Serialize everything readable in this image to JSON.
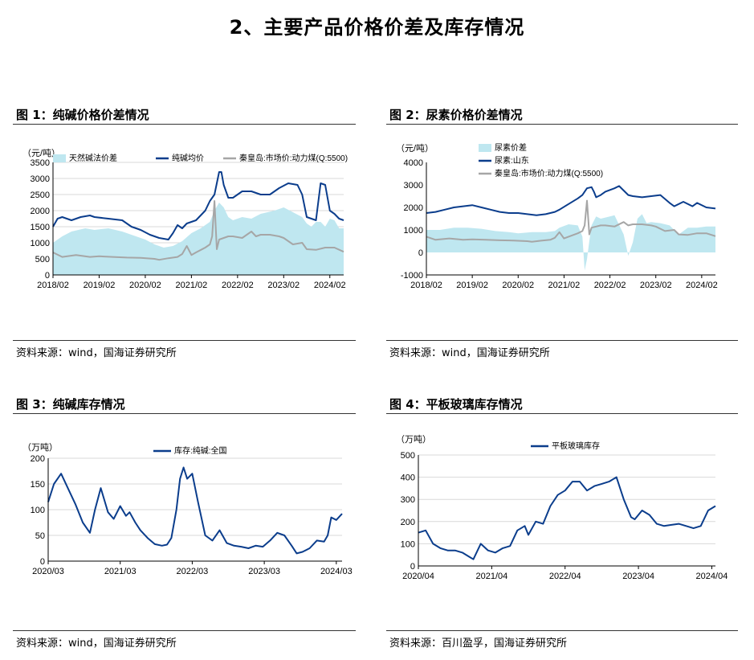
{
  "page": {
    "title": "2、主要产品价格价差及库存情况"
  },
  "colors": {
    "navy": "#0b3d8c",
    "gray": "#a6a6a6",
    "cyan": "#bfe7f0",
    "rule": "#333333"
  },
  "figures": [
    {
      "title": "图 1：纯碱价格价差情况",
      "source": "资料来源：wind，国海证券研究所"
    },
    {
      "title": "图 2：尿素价格价差情况",
      "source": "资料来源：wind，国海证券研究所"
    },
    {
      "title": "图 3：纯碱库存情况",
      "source": "资料来源：wind，国海证券研究所"
    },
    {
      "title": "图 4：平板玻璃库存情况",
      "source": "资料来源：百川盈孚，国海证券研究所"
    }
  ],
  "chart_data": [
    {
      "type": "area",
      "unit": "（元/吨）",
      "ylim": [
        0,
        3500
      ],
      "yticks": [
        0,
        500,
        1000,
        1500,
        2000,
        2500,
        3000,
        3500
      ],
      "xlim": [
        2018.1,
        2024.4
      ],
      "xticks": [
        2018.1,
        2019.1,
        2020.1,
        2021.1,
        2022.1,
        2023.1,
        2024.1
      ],
      "xticklabels": [
        "2018/02",
        "2019/02",
        "2020/02",
        "2021/02",
        "2022/02",
        "2023/02",
        "2024/02"
      ],
      "grid": true,
      "legend": "top",
      "series": [
        {
          "name": "天然碱法价差",
          "kind": "area",
          "color": "#bfe7f0",
          "x": [
            2018.1,
            2018.3,
            2018.5,
            2018.8,
            2019.0,
            2019.3,
            2019.6,
            2019.9,
            2020.1,
            2020.3,
            2020.5,
            2020.7,
            2020.9,
            2021.1,
            2021.3,
            2021.5,
            2021.6,
            2021.7,
            2021.8,
            2021.9,
            2022.0,
            2022.2,
            2022.4,
            2022.6,
            2022.9,
            2023.1,
            2023.3,
            2023.5,
            2023.6,
            2023.7,
            2023.8,
            2023.9,
            2024.0,
            2024.1,
            2024.2,
            2024.3,
            2024.4
          ],
          "y": [
            1000,
            1200,
            1350,
            1450,
            1400,
            1450,
            1350,
            1200,
            1100,
            950,
            850,
            900,
            1050,
            1300,
            1450,
            1650,
            2000,
            2250,
            2100,
            1800,
            1700,
            1800,
            1750,
            1900,
            2000,
            2100,
            1950,
            1800,
            1600,
            1500,
            1650,
            1650,
            1500,
            1750,
            1700,
            1450,
            1450
          ]
        },
        {
          "name": "纯碱均价",
          "kind": "line",
          "color": "#0b3d8c",
          "x": [
            2018.1,
            2018.2,
            2018.3,
            2018.5,
            2018.7,
            2018.9,
            2019.0,
            2019.3,
            2019.6,
            2019.8,
            2020.0,
            2020.2,
            2020.4,
            2020.6,
            2020.7,
            2020.8,
            2020.9,
            2021.0,
            2021.2,
            2021.4,
            2021.5,
            2021.6,
            2021.7,
            2021.75,
            2021.8,
            2021.9,
            2022.0,
            2022.2,
            2022.4,
            2022.6,
            2022.8,
            2023.0,
            2023.2,
            2023.4,
            2023.5,
            2023.6,
            2023.7,
            2023.8,
            2023.9,
            2024.0,
            2024.1,
            2024.2,
            2024.3,
            2024.4
          ],
          "y": [
            1500,
            1750,
            1800,
            1700,
            1800,
            1850,
            1800,
            1750,
            1700,
            1500,
            1400,
            1250,
            1150,
            1100,
            1300,
            1550,
            1450,
            1600,
            1700,
            2000,
            2300,
            2500,
            3200,
            3200,
            2800,
            2400,
            2400,
            2600,
            2600,
            2500,
            2500,
            2700,
            2850,
            2800,
            2500,
            1800,
            1750,
            1700,
            2850,
            2800,
            2000,
            1900,
            1750,
            1700
          ]
        },
        {
          "name": "秦皇岛:市场价:动力煤(Q:5500)",
          "kind": "line",
          "color": "#a6a6a6",
          "x": [
            2018.1,
            2018.3,
            2018.6,
            2018.9,
            2019.1,
            2019.4,
            2019.7,
            2020.0,
            2020.3,
            2020.4,
            2020.6,
            2020.8,
            2020.9,
            2021.0,
            2021.1,
            2021.2,
            2021.4,
            2021.5,
            2021.55,
            2021.6,
            2021.65,
            2021.7,
            2021.8,
            2021.9,
            2022.0,
            2022.2,
            2022.4,
            2022.5,
            2022.6,
            2022.8,
            2023.0,
            2023.1,
            2023.3,
            2023.5,
            2023.6,
            2023.8,
            2024.0,
            2024.2,
            2024.4
          ],
          "y": [
            700,
            560,
            620,
            560,
            580,
            560,
            540,
            530,
            500,
            470,
            520,
            560,
            650,
            900,
            620,
            700,
            850,
            950,
            1200,
            2300,
            800,
            1100,
            1150,
            1200,
            1200,
            1150,
            1350,
            1200,
            1250,
            1250,
            1200,
            1150,
            950,
            1000,
            800,
            780,
            850,
            850,
            720
          ]
        }
      ]
    },
    {
      "type": "area",
      "unit": "（元/吨）",
      "ylim": [
        -1000,
        4000
      ],
      "yticks": [
        -1000,
        0,
        1000,
        2000,
        3000,
        4000
      ],
      "xlim": [
        2018.1,
        2024.4
      ],
      "xticks": [
        2018.1,
        2019.1,
        2020.1,
        2021.1,
        2022.1,
        2023.1,
        2024.1
      ],
      "xticklabels": [
        "2018/02",
        "2019/02",
        "2020/02",
        "2021/02",
        "2022/02",
        "2023/02",
        "2024/02"
      ],
      "grid": false,
      "legend": "top-left",
      "series": [
        {
          "name": "尿素价差",
          "kind": "area",
          "color": "#bfe7f0",
          "x": [
            2018.1,
            2018.4,
            2018.7,
            2019.0,
            2019.3,
            2019.6,
            2019.9,
            2020.1,
            2020.4,
            2020.7,
            2020.9,
            2021.0,
            2021.2,
            2021.4,
            2021.5,
            2021.55,
            2021.6,
            2021.65,
            2021.7,
            2021.8,
            2021.9,
            2022.0,
            2022.2,
            2022.4,
            2022.5,
            2022.6,
            2022.7,
            2022.8,
            2022.9,
            2023.0,
            2023.2,
            2023.4,
            2023.6,
            2023.8,
            2024.0,
            2024.2,
            2024.4
          ],
          "y": [
            1000,
            1000,
            1100,
            1100,
            1050,
            950,
            900,
            850,
            900,
            900,
            950,
            1100,
            1250,
            1200,
            700,
            -800,
            -300,
            500,
            1200,
            1600,
            1500,
            1550,
            1650,
            800,
            -150,
            450,
            1500,
            1700,
            1300,
            1350,
            1300,
            1200,
            800,
            1100,
            1100,
            1150,
            1150
          ]
        },
        {
          "name": "尿素:山东",
          "kind": "line",
          "color": "#0b3d8c",
          "x": [
            2018.1,
            2018.3,
            2018.5,
            2018.7,
            2018.9,
            2019.1,
            2019.3,
            2019.5,
            2019.7,
            2019.9,
            2020.1,
            2020.3,
            2020.5,
            2020.7,
            2020.9,
            2021.0,
            2021.2,
            2021.4,
            2021.5,
            2021.6,
            2021.7,
            2021.75,
            2021.8,
            2021.9,
            2022.0,
            2022.2,
            2022.3,
            2022.4,
            2022.5,
            2022.6,
            2022.8,
            2023.0,
            2023.2,
            2023.4,
            2023.5,
            2023.7,
            2023.9,
            2024.0,
            2024.2,
            2024.4
          ],
          "y": [
            1750,
            1800,
            1900,
            2000,
            2050,
            2100,
            2000,
            1900,
            1800,
            1750,
            1750,
            1700,
            1650,
            1700,
            1800,
            1900,
            2150,
            2400,
            2550,
            2850,
            2900,
            2700,
            2450,
            2550,
            2700,
            2850,
            2950,
            2750,
            2550,
            2500,
            2450,
            2500,
            2550,
            2200,
            2050,
            2250,
            2050,
            2200,
            2000,
            1950
          ]
        },
        {
          "name": "秦皇岛:市场价:动力煤(Q:5500)",
          "kind": "line",
          "color": "#a6a6a6",
          "x": [
            2018.1,
            2018.3,
            2018.6,
            2018.9,
            2019.1,
            2019.4,
            2019.7,
            2020.0,
            2020.3,
            2020.4,
            2020.6,
            2020.8,
            2020.9,
            2021.0,
            2021.1,
            2021.2,
            2021.4,
            2021.5,
            2021.55,
            2021.6,
            2021.65,
            2021.7,
            2021.8,
            2021.9,
            2022.0,
            2022.2,
            2022.4,
            2022.5,
            2022.6,
            2022.8,
            2023.0,
            2023.1,
            2023.3,
            2023.5,
            2023.6,
            2023.8,
            2024.0,
            2024.2,
            2024.4
          ],
          "y": [
            700,
            560,
            620,
            560,
            580,
            560,
            540,
            530,
            500,
            470,
            520,
            560,
            650,
            900,
            620,
            700,
            850,
            950,
            1200,
            2300,
            800,
            1100,
            1150,
            1200,
            1200,
            1150,
            1350,
            1200,
            1250,
            1250,
            1200,
            1150,
            950,
            1000,
            800,
            780,
            850,
            850,
            720
          ]
        }
      ]
    },
    {
      "type": "line",
      "unit": "（万吨）",
      "ylim": [
        0,
        200
      ],
      "yticks": [
        0,
        50,
        100,
        150,
        200
      ],
      "xlim": [
        2020.17,
        2024.25
      ],
      "xticks": [
        2020.17,
        2021.17,
        2022.17,
        2023.17,
        2024.17
      ],
      "xticklabels": [
        "2020/03",
        "2021/03",
        "2022/03",
        "2023/03",
        "2024/03"
      ],
      "grid": true,
      "legend": "top",
      "series": [
        {
          "name": "库存:纯碱:全国",
          "kind": "line",
          "color": "#0b3d8c",
          "x": [
            2020.17,
            2020.25,
            2020.35,
            2020.45,
            2020.55,
            2020.65,
            2020.75,
            2020.82,
            2020.9,
            2021.0,
            2021.08,
            2021.17,
            2021.25,
            2021.3,
            2021.38,
            2021.45,
            2021.55,
            2021.65,
            2021.75,
            2021.82,
            2021.88,
            2021.95,
            2022.0,
            2022.05,
            2022.1,
            2022.17,
            2022.25,
            2022.35,
            2022.45,
            2022.55,
            2022.65,
            2022.75,
            2022.85,
            2022.95,
            2023.05,
            2023.15,
            2023.25,
            2023.35,
            2023.45,
            2023.55,
            2023.62,
            2023.7,
            2023.8,
            2023.9,
            2024.0,
            2024.05,
            2024.1,
            2024.17,
            2024.25
          ],
          "y": [
            115,
            150,
            170,
            140,
            110,
            75,
            55,
            100,
            142,
            95,
            82,
            107,
            88,
            95,
            75,
            60,
            45,
            33,
            30,
            32,
            45,
            100,
            160,
            182,
            160,
            170,
            115,
            50,
            40,
            60,
            35,
            30,
            28,
            25,
            30,
            28,
            40,
            55,
            50,
            30,
            15,
            18,
            25,
            40,
            38,
            50,
            85,
            80,
            92
          ]
        }
      ]
    },
    {
      "type": "line",
      "unit": "（万吨）",
      "ylim": [
        0,
        500
      ],
      "yticks": [
        0,
        100,
        200,
        300,
        400,
        500
      ],
      "xlim": [
        2020.25,
        2024.3
      ],
      "xticks": [
        2020.25,
        2021.25,
        2022.25,
        2023.25,
        2024.25
      ],
      "xticklabels": [
        "2020/04",
        "2021/04",
        "2022/04",
        "2023/04",
        "2024/04"
      ],
      "grid": true,
      "legend": "top",
      "series": [
        {
          "name": "平板玻璃库存",
          "kind": "line",
          "color": "#0b3d8c",
          "x": [
            2020.25,
            2020.35,
            2020.45,
            2020.55,
            2020.65,
            2020.75,
            2020.85,
            2020.95,
            2021.0,
            2021.1,
            2021.2,
            2021.3,
            2021.4,
            2021.5,
            2021.6,
            2021.7,
            2021.75,
            2021.85,
            2021.95,
            2022.05,
            2022.15,
            2022.25,
            2022.35,
            2022.45,
            2022.55,
            2022.65,
            2022.75,
            2022.85,
            2022.95,
            2023.05,
            2023.15,
            2023.2,
            2023.3,
            2023.4,
            2023.5,
            2023.6,
            2023.7,
            2023.8,
            2023.9,
            2024.0,
            2024.1,
            2024.2,
            2024.3
          ],
          "y": [
            150,
            160,
            100,
            80,
            70,
            70,
            60,
            40,
            30,
            100,
            70,
            60,
            80,
            90,
            160,
            180,
            140,
            200,
            190,
            270,
            320,
            340,
            380,
            380,
            340,
            360,
            370,
            380,
            400,
            300,
            220,
            210,
            250,
            230,
            190,
            180,
            185,
            190,
            180,
            170,
            180,
            250,
            270
          ]
        }
      ]
    }
  ]
}
